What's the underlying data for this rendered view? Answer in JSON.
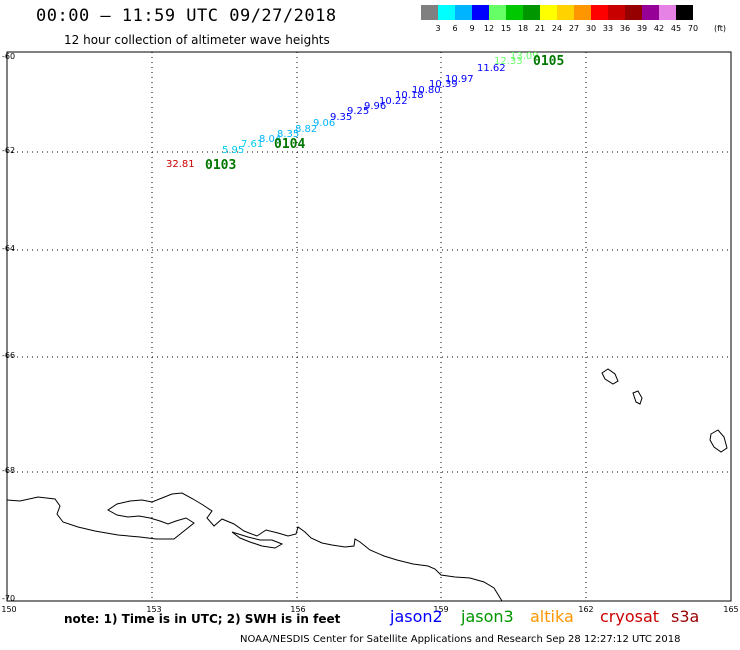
{
  "header": {
    "title": "00:00 – 11:59 UTC 09/27/2018",
    "subtitle": "12 hour collection of altimeter wave heights"
  },
  "legend": {
    "levels": [
      "3",
      "6",
      "9",
      "12",
      "15",
      "18",
      "21",
      "24",
      "27",
      "30",
      "33",
      "36",
      "39",
      "42",
      "45",
      "70"
    ],
    "unit": "(ft)",
    "colors": [
      "#808080",
      "#00ffff",
      "#00b4ff",
      "#0000ff",
      "#66ff66",
      "#00c800",
      "#009600",
      "#ffff00",
      "#ffd200",
      "#ff9600",
      "#ff0000",
      "#c80000",
      "#960000",
      "#960096",
      "#e682e6",
      "#000000"
    ]
  },
  "axes": {
    "latitudes": [
      "-60",
      "-62",
      "-64",
      "-66",
      "-68",
      "-70"
    ],
    "longitudes": [
      "150",
      "153",
      "156",
      "159",
      "162",
      "165"
    ]
  },
  "observations": [
    {
      "text": "32.81",
      "color": "#cc0000"
    },
    {
      "text": "5.95",
      "color": "#00ccee"
    },
    {
      "text": "7.61",
      "color": "#00ccee"
    },
    {
      "text": "8.04",
      "color": "#00b4ff"
    },
    {
      "text": "8.35",
      "color": "#00b4ff"
    },
    {
      "text": "8.82",
      "color": "#00b4ff"
    },
    {
      "text": "9.06",
      "color": "#00b4ff"
    },
    {
      "text": "9.35",
      "color": "#0000ff"
    },
    {
      "text": "9.25",
      "color": "#0000ff"
    },
    {
      "text": "9.96",
      "color": "#0000ff"
    },
    {
      "text": "10.22",
      "color": "#0000ff"
    },
    {
      "text": "10.18",
      "color": "#0000ff"
    },
    {
      "text": "10.80",
      "color": "#0000ff"
    },
    {
      "text": "10.39",
      "color": "#0000ff"
    },
    {
      "text": "10.97",
      "color": "#0000ff"
    },
    {
      "text": "11.62",
      "color": "#0000ff"
    },
    {
      "text": "12.33",
      "color": "#66ff66"
    },
    {
      "text": "13.09",
      "color": "#66ff66"
    }
  ],
  "passes": [
    "0103",
    "0104",
    "0105"
  ],
  "footer": {
    "note": "note: 1) Time is in UTC; 2) SWH is in feet",
    "satellites": [
      {
        "name": "jason2",
        "color": "#0000ff"
      },
      {
        "name": "jason3",
        "color": "#009600"
      },
      {
        "name": "altika",
        "color": "#ff9600"
      },
      {
        "name": "cryosat",
        "color": "#cc0000"
      },
      {
        "name": "s3a",
        "color": "#990000"
      }
    ],
    "credit": "NOAA/NESDIS Center for Satellite Applications and Research    Sep 28 12:27:12 UTC 2018"
  }
}
